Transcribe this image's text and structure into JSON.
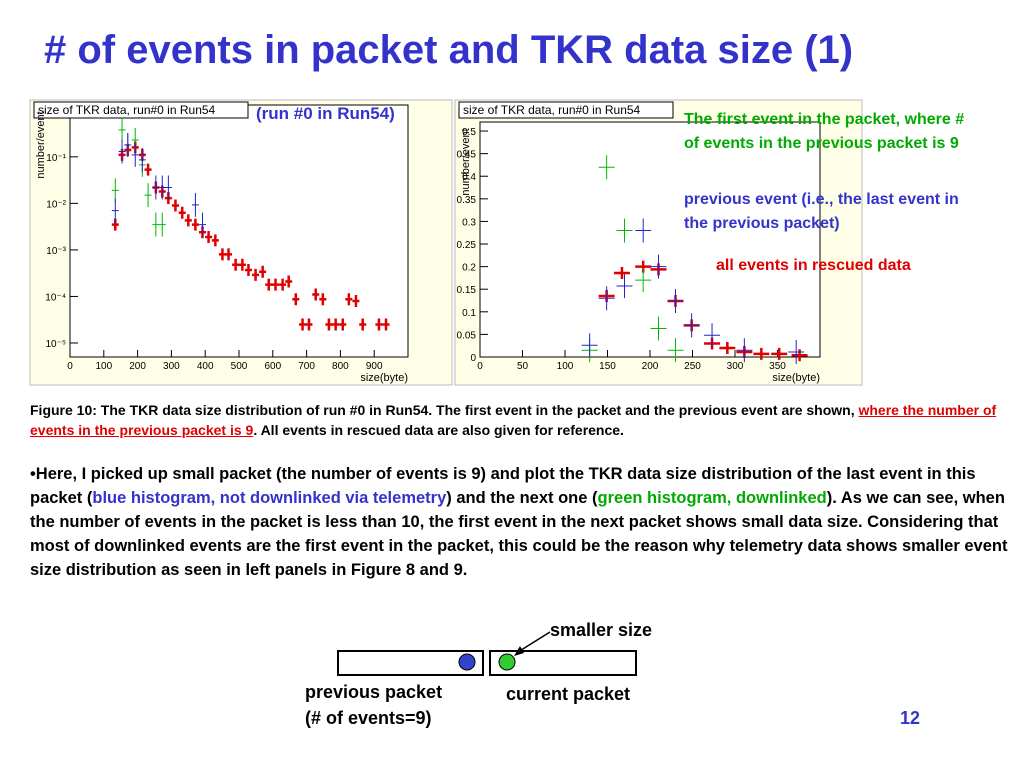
{
  "title": "# of events in packet and TKR data size (1)",
  "plot_note": "(run #0 in Run54)",
  "chart_data": [
    {
      "type": "errorbar",
      "stat_title": "size of TKR data, run#0 in Run54",
      "y_label": "number/event",
      "x_label": "size(byte)",
      "log_y": true,
      "xlim": [
        0,
        1000
      ],
      "ylim": [
        5e-06,
        1.3
      ],
      "xticks": [
        0,
        100,
        200,
        300,
        400,
        500,
        600,
        700,
        800,
        900
      ],
      "yticks": [
        {
          "value": 1e-05,
          "label": "10⁻⁵"
        },
        {
          "value": 0.0001,
          "label": "10⁻⁴"
        },
        {
          "value": 0.001,
          "label": "10⁻³"
        },
        {
          "value": 0.01,
          "label": "10⁻²"
        },
        {
          "value": 0.1,
          "label": "10⁻¹"
        }
      ],
      "series": [
        {
          "color": "#e00000",
          "x": [
            134,
            154,
            171,
            193,
            214,
            231,
            254,
            273,
            291,
            312,
            332,
            350,
            371,
            392,
            410,
            430,
            451,
            469,
            490,
            510,
            528,
            549,
            570,
            588,
            608,
            629,
            647,
            668,
            688,
            707,
            727,
            748,
            766,
            786,
            807,
            825,
            846,
            866,
            914,
            935
          ],
          "values": [
            0.0035,
            0.11,
            0.14,
            0.16,
            0.11,
            0.053,
            0.022,
            0.018,
            0.013,
            0.009,
            0.0063,
            0.0043,
            0.0035,
            0.0024,
            0.0019,
            0.0016,
            0.0008,
            0.0008,
            0.00048,
            0.00048,
            0.00037,
            0.00029,
            0.00034,
            0.00018,
            0.00018,
            0.00018,
            0.00021,
            8.7e-05,
            2.5e-05,
            2.5e-05,
            0.00011,
            8.7e-05,
            2.5e-05,
            2.5e-05,
            2.5e-05,
            8.7e-05,
            8e-05,
            2.5e-05,
            2.5e-05,
            2.5e-05
          ]
        },
        {
          "color": "#00bb00",
          "x": [
            134,
            154,
            171,
            193,
            214,
            231,
            254,
            273
          ],
          "values": [
            0.019,
            0.38,
            0.18,
            0.23,
            0.067,
            0.015,
            0.0035,
            0.0035
          ]
        },
        {
          "color": "#2222cc",
          "x": [
            134,
            154,
            171,
            193,
            214,
            254,
            273,
            291,
            371,
            392
          ],
          "values": [
            0.007,
            0.13,
            0.18,
            0.11,
            0.086,
            0.022,
            0.022,
            0.022,
            0.0093,
            0.0035
          ]
        }
      ]
    },
    {
      "type": "errorbar",
      "stat_title": "size of TKR data, run#0 in Run54",
      "y_label": "number/event",
      "x_label": "size(byte)",
      "log_y": false,
      "xlim": [
        0,
        400
      ],
      "ylim": [
        0,
        0.52
      ],
      "xticks": [
        0,
        50,
        100,
        150,
        200,
        250,
        300,
        350
      ],
      "yticks": [
        0,
        0.05,
        0.1,
        0.15,
        0.2,
        0.25,
        0.3,
        0.35,
        0.4,
        0.45,
        0.5
      ],
      "series": [
        {
          "color": "#e00000",
          "x": [
            149,
            167,
            192,
            210,
            230,
            249,
            273,
            291,
            311,
            331,
            352,
            376
          ],
          "values": [
            0.135,
            0.186,
            0.2,
            0.194,
            0.124,
            0.07,
            0.03,
            0.02,
            0.011,
            0.007,
            0.007,
            0.004
          ]
        },
        {
          "color": "#00bb00",
          "x": [
            129,
            149,
            170,
            192,
            210,
            230
          ],
          "values": [
            0.015,
            0.42,
            0.28,
            0.17,
            0.063,
            0.015
          ]
        },
        {
          "color": "#2222cc",
          "x": [
            129,
            149,
            170,
            192,
            210,
            230,
            249,
            273,
            311,
            372
          ],
          "values": [
            0.026,
            0.13,
            0.157,
            0.28,
            0.2,
            0.124,
            0.07,
            0.048,
            0.015,
            0.011
          ]
        }
      ]
    }
  ],
  "annotations": [
    "The first event in the packet, where # of events in the previous packet is 9",
    "previous event (i.e., the last event in the previous packet)",
    "all events in rescued data"
  ],
  "caption": [
    "Figure 10: The TKR data size distribution of run #0 in Run54. The first event in the packet and the previous event are shown, ",
    "where the number of events in the previous packet is 9",
    ". All events in rescued data are also given for reference."
  ],
  "body": [
    "•Here, I picked up small packet (the number of events is 9) and plot the TKR data size distribution of the last event in this packet (",
    "blue histogram, not downlinked via telemetry",
    ") and the next one (",
    "green histogram, downlinked",
    "). As we can see, when the number of events in the packet is less than 10, the first event in the next packet shows small data size. Considering that most of downlinked events are the first event in the packet, this could be the reason why telemetry data shows smaller event size distribution as seen in left panels in Figure 8 and 9."
  ],
  "diagram": {
    "smaller": "smaller size",
    "previous": "previous packet",
    "previous_count": "(# of events=9)",
    "current": "current packet"
  },
  "page_number": "12"
}
